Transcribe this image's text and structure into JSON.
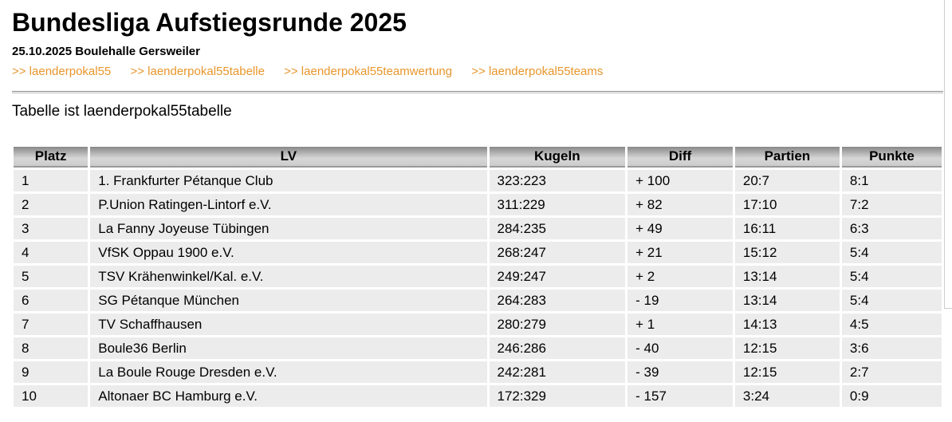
{
  "header": {
    "title": "Bundesliga Aufstiegsrunde 2025",
    "subtitle": "25.10.2025 Boulehalle Gersweiler",
    "links": [
      ">> laenderpokal55",
      ">> laenderpokal55tabelle",
      ">> laenderpokal55teamwertung",
      ">> laenderpokal55teams"
    ],
    "link_color": "#e8962c"
  },
  "caption": "Tabelle ist laenderpokal55tabelle",
  "table": {
    "columns": [
      "Platz",
      "LV",
      "Kugeln",
      "Diff",
      "Partien",
      "Punkte"
    ],
    "rows": [
      [
        "1",
        "1. Frankfurter Pétanque Club",
        "323:223",
        "+ 100",
        "20:7",
        "8:1"
      ],
      [
        "2",
        "P.Union Ratingen-Lintorf e.V.",
        "311:229",
        "+ 82",
        "17:10",
        "7:2"
      ],
      [
        "3",
        "La Fanny Joyeuse Tübingen",
        "284:235",
        "+ 49",
        "16:11",
        "6:3"
      ],
      [
        "4",
        "VfSK Oppau 1900 e.V.",
        "268:247",
        "+ 21",
        "15:12",
        "5:4"
      ],
      [
        "5",
        "TSV Krähenwinkel/Kal. e.V.",
        "249:247",
        "+ 2",
        "13:14",
        "5:4"
      ],
      [
        "6",
        "SG Pétanque München",
        "264:283",
        "- 19",
        "13:14",
        "5:4"
      ],
      [
        "7",
        "TV Schaffhausen",
        "280:279",
        "+ 1",
        "14:13",
        "4:5"
      ],
      [
        "8",
        "Boule36 Berlin",
        "246:286",
        "- 40",
        "12:15",
        "3:6"
      ],
      [
        "9",
        "La Boule Rouge Dresden e.V.",
        "242:281",
        "- 39",
        "12:15",
        "2:7"
      ],
      [
        "10",
        "Altonaer BC Hamburg e.V.",
        "172:329",
        "- 157",
        "3:24",
        "0:9"
      ]
    ]
  }
}
